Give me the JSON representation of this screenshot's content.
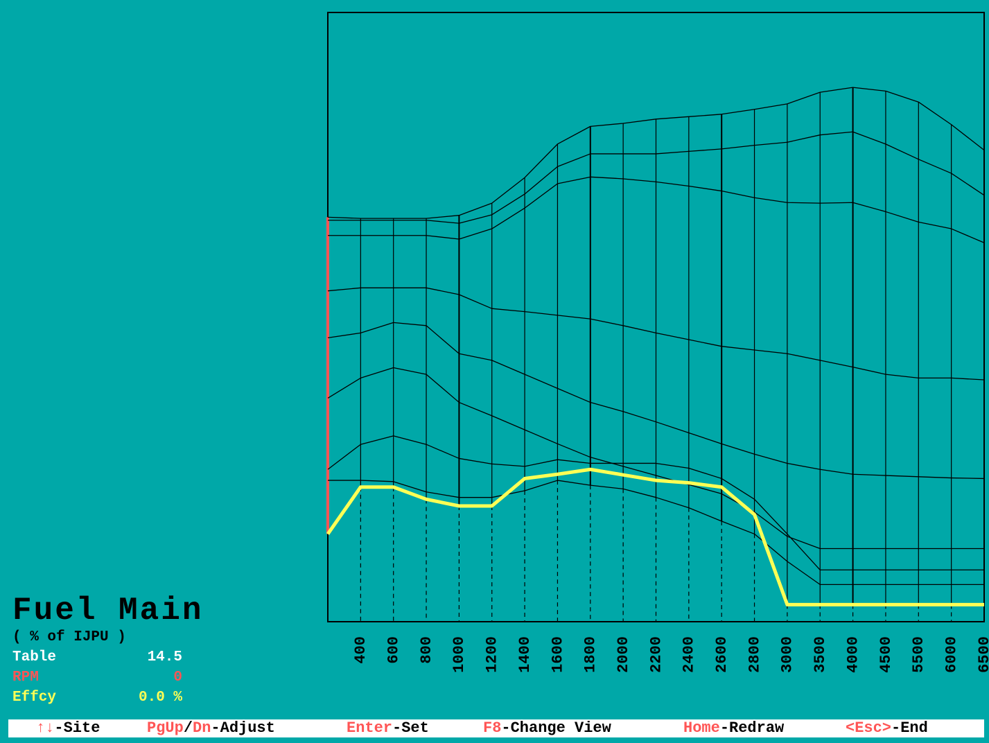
{
  "chart_data": {
    "type": "line",
    "categories": [
      null,
      "400",
      "600",
      "800",
      "1000",
      "1200",
      "1400",
      "1600",
      "1800",
      "2000",
      "2200",
      "2400",
      "2600",
      "2800",
      "3000",
      "3500",
      "4000",
      "4500",
      "5500",
      "6000",
      "6500"
    ],
    "ylim": [
      0,
      100
    ],
    "series": [
      {
        "color": "#000000",
        "values": [
          66.4,
          66.2,
          66.2,
          66.2,
          66.7,
          68.7,
          72.9,
          78.4,
          81.3,
          81.8,
          82.5,
          82.9,
          83.3,
          84.1,
          85.0,
          86.9,
          87.7,
          87.1,
          85.3,
          81.6,
          77.4
        ]
      },
      {
        "color": "#000000",
        "values": [
          65.9,
          65.9,
          65.9,
          65.9,
          65.4,
          66.8,
          70.2,
          74.7,
          76.8,
          76.8,
          76.8,
          77.2,
          77.6,
          78.2,
          78.7,
          79.9,
          80.4,
          78.4,
          75.9,
          73.6,
          70.0
        ]
      },
      {
        "color": "#000000",
        "values": [
          63.4,
          63.4,
          63.4,
          63.4,
          62.8,
          64.5,
          67.9,
          71.9,
          73.0,
          72.7,
          72.2,
          71.5,
          70.7,
          69.6,
          68.8,
          68.7,
          68.8,
          67.3,
          65.6,
          64.5,
          62.2
        ]
      },
      {
        "color": "#000000",
        "values": [
          54.3,
          54.8,
          54.8,
          54.8,
          53.7,
          51.4,
          50.9,
          50.3,
          49.7,
          48.6,
          47.4,
          46.3,
          45.2,
          44.6,
          44.0,
          42.9,
          41.8,
          40.6,
          40.0,
          40.0,
          39.7
        ]
      },
      {
        "color": "#000000",
        "values": [
          46.6,
          47.4,
          49.1,
          48.6,
          44.0,
          42.9,
          40.6,
          38.3,
          36.0,
          34.5,
          32.8,
          31.0,
          29.2,
          27.5,
          26.0,
          25.0,
          24.2,
          24.0,
          23.8,
          23.6,
          23.5
        ]
      },
      {
        "color": "#000000",
        "values": [
          36.7,
          40.0,
          41.7,
          40.6,
          36.0,
          33.8,
          31.5,
          29.2,
          27.0,
          25.5,
          24.0,
          22.5,
          21.0,
          18.0,
          14.0,
          12.0,
          12.0,
          12.0,
          12.0,
          12.0,
          12.0
        ]
      },
      {
        "color": "#000000",
        "values": [
          25.0,
          29.1,
          30.5,
          29.1,
          26.8,
          25.9,
          25.5,
          26.6,
          26.0,
          26.0,
          26.0,
          25.2,
          23.5,
          20.1,
          14.4,
          8.5,
          8.5,
          8.5,
          8.5,
          8.5,
          8.5
        ]
      },
      {
        "color": "#000000",
        "values": [
          23.2,
          23.2,
          23.0,
          21.3,
          20.4,
          20.4,
          21.5,
          23.2,
          22.4,
          21.8,
          20.4,
          18.7,
          16.5,
          14.4,
          9.9,
          6.1,
          6.1,
          6.1,
          6.1,
          6.1,
          6.1
        ]
      },
      {
        "color": "#ffff55",
        "values": [
          14.4,
          22.1,
          22.1,
          20.1,
          19.0,
          19.0,
          23.5,
          24.2,
          25.0,
          24.1,
          23.2,
          22.8,
          22.1,
          17.6,
          2.8,
          2.8,
          2.8,
          2.8,
          2.8,
          2.8,
          2.8
        ]
      }
    ]
  },
  "panel": {
    "title": "Fuel Main",
    "subtitle": "( % of IJPU )",
    "rows": [
      {
        "label": "Table",
        "value": "14.5",
        "color": "#ffffff"
      },
      {
        "label": "RPM",
        "value": "0",
        "color": "#ff5555"
      },
      {
        "label": "Effcy",
        "value": "0.0 %",
        "color": "#ffff55"
      }
    ]
  },
  "status_bar": [
    [
      "↑↓",
      "-Site"
    ],
    [
      "PgUp",
      "/",
      "Dn",
      "-Adjust"
    ],
    [
      "Enter",
      "-Set"
    ],
    [
      "F8",
      "-Change View"
    ],
    [
      "Home",
      "-Redraw"
    ],
    [
      "<Esc>",
      "-End"
    ]
  ]
}
